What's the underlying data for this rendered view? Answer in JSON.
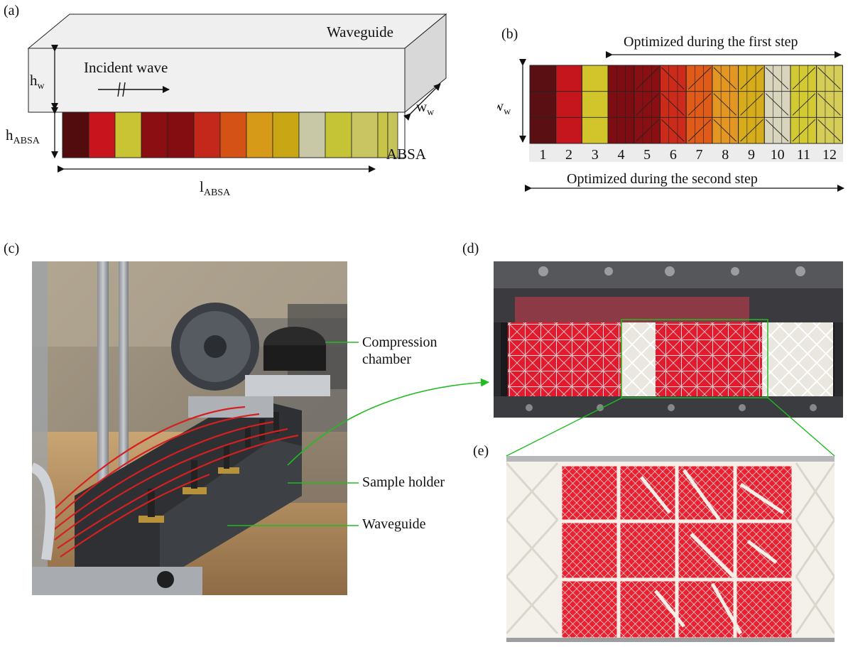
{
  "panels": {
    "a": {
      "label": "(a)",
      "waveguide": "Waveguide",
      "incident_wave": "Incident wave",
      "hw": {
        "base": "h",
        "sub": "w"
      },
      "habsa": {
        "base": "h",
        "sub": "ABSA"
      },
      "labsa": {
        "base": "l",
        "sub": "ABSA"
      },
      "ww": {
        "base": "w",
        "sub": "w"
      },
      "absa": "ABSA",
      "cell_colors": [
        "#520c0e",
        "#c8141c",
        "#c9c433",
        "#8a0e12",
        "#830d10",
        "#c4281a",
        "#d55216",
        "#d79a18",
        "#c9a614",
        "#c9c8a6",
        "#c5c437",
        "#c9c562",
        "#c7c447",
        "#c6c35a"
      ]
    },
    "b": {
      "label": "(b)",
      "first_step": "Optimized during the first step",
      "second_step": "Optimized during the second step",
      "ww": {
        "base": "w",
        "sub": "w"
      },
      "cells": [
        "1",
        "2",
        "3",
        "4",
        "5",
        "6",
        "7",
        "8",
        "9",
        "10",
        "11",
        "12"
      ],
      "cell_colors": [
        "#5a0f12",
        "#c4161c",
        "#d2c52c",
        "#7d0d12",
        "#8a0f13",
        "#cc2a1a",
        "#e05a18",
        "#e49622",
        "#d7ac1a",
        "#d9d4bc",
        "#d3ca33",
        "#d5cd58"
      ]
    },
    "c": {
      "label": "(c)",
      "compression_chamber": [
        "Compression",
        "chamber"
      ],
      "sample_holder": "Sample holder",
      "waveguide": "Waveguide"
    },
    "d": {
      "label": "(d)"
    },
    "e": {
      "label": "(e)"
    },
    "colors": {
      "callout_line": "#22bb22",
      "sample_red": "#e21a2e",
      "sample_white": "#f3f1ea"
    }
  }
}
